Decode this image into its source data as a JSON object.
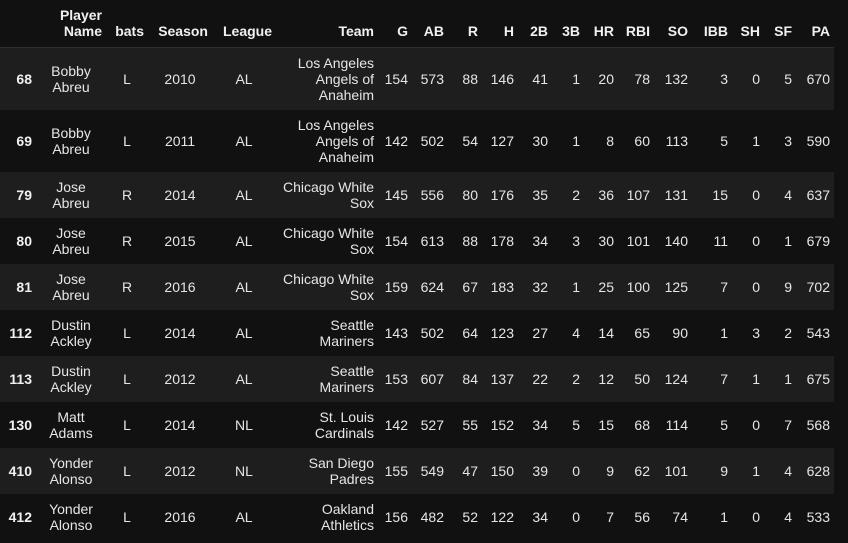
{
  "columns": [
    "",
    "Player Name",
    "bats",
    "Season",
    "League",
    "Team",
    "G",
    "AB",
    "R",
    "H",
    "2B",
    "3B",
    "HR",
    "RBI",
    "SO",
    "IBB",
    "SH",
    "SF",
    "PA"
  ],
  "rows": [
    [
      "68",
      "Bobby Abreu",
      "L",
      "2010",
      "AL",
      "Los Angeles Angels of Anaheim",
      "154",
      "573",
      "88",
      "146",
      "41",
      "1",
      "20",
      "78",
      "132",
      "3",
      "0",
      "5",
      "670"
    ],
    [
      "69",
      "Bobby Abreu",
      "L",
      "2011",
      "AL",
      "Los Angeles Angels of Anaheim",
      "142",
      "502",
      "54",
      "127",
      "30",
      "1",
      "8",
      "60",
      "113",
      "5",
      "1",
      "3",
      "590"
    ],
    [
      "79",
      "Jose Abreu",
      "R",
      "2014",
      "AL",
      "Chicago White Sox",
      "145",
      "556",
      "80",
      "176",
      "35",
      "2",
      "36",
      "107",
      "131",
      "15",
      "0",
      "4",
      "637"
    ],
    [
      "80",
      "Jose Abreu",
      "R",
      "2015",
      "AL",
      "Chicago White Sox",
      "154",
      "613",
      "88",
      "178",
      "34",
      "3",
      "30",
      "101",
      "140",
      "11",
      "0",
      "1",
      "679"
    ],
    [
      "81",
      "Jose Abreu",
      "R",
      "2016",
      "AL",
      "Chicago White Sox",
      "159",
      "624",
      "67",
      "183",
      "32",
      "1",
      "25",
      "100",
      "125",
      "7",
      "0",
      "9",
      "702"
    ],
    [
      "112",
      "Dustin Ackley",
      "L",
      "2014",
      "AL",
      "Seattle Mariners",
      "143",
      "502",
      "64",
      "123",
      "27",
      "4",
      "14",
      "65",
      "90",
      "1",
      "3",
      "2",
      "543"
    ],
    [
      "113",
      "Dustin Ackley",
      "L",
      "2012",
      "AL",
      "Seattle Mariners",
      "153",
      "607",
      "84",
      "137",
      "22",
      "2",
      "12",
      "50",
      "124",
      "7",
      "1",
      "1",
      "675"
    ],
    [
      "130",
      "Matt Adams",
      "L",
      "2014",
      "NL",
      "St. Louis Cardinals",
      "142",
      "527",
      "55",
      "152",
      "34",
      "5",
      "15",
      "68",
      "114",
      "5",
      "0",
      "7",
      "568"
    ],
    [
      "410",
      "Yonder Alonso",
      "L",
      "2012",
      "NL",
      "San Diego Padres",
      "155",
      "549",
      "47",
      "150",
      "39",
      "0",
      "9",
      "62",
      "101",
      "9",
      "1",
      "4",
      "628"
    ],
    [
      "412",
      "Yonder Alonso",
      "L",
      "2016",
      "AL",
      "Oakland Athletics",
      "156",
      "482",
      "52",
      "122",
      "34",
      "0",
      "7",
      "56",
      "74",
      "1",
      "0",
      "4",
      "533"
    ]
  ]
}
